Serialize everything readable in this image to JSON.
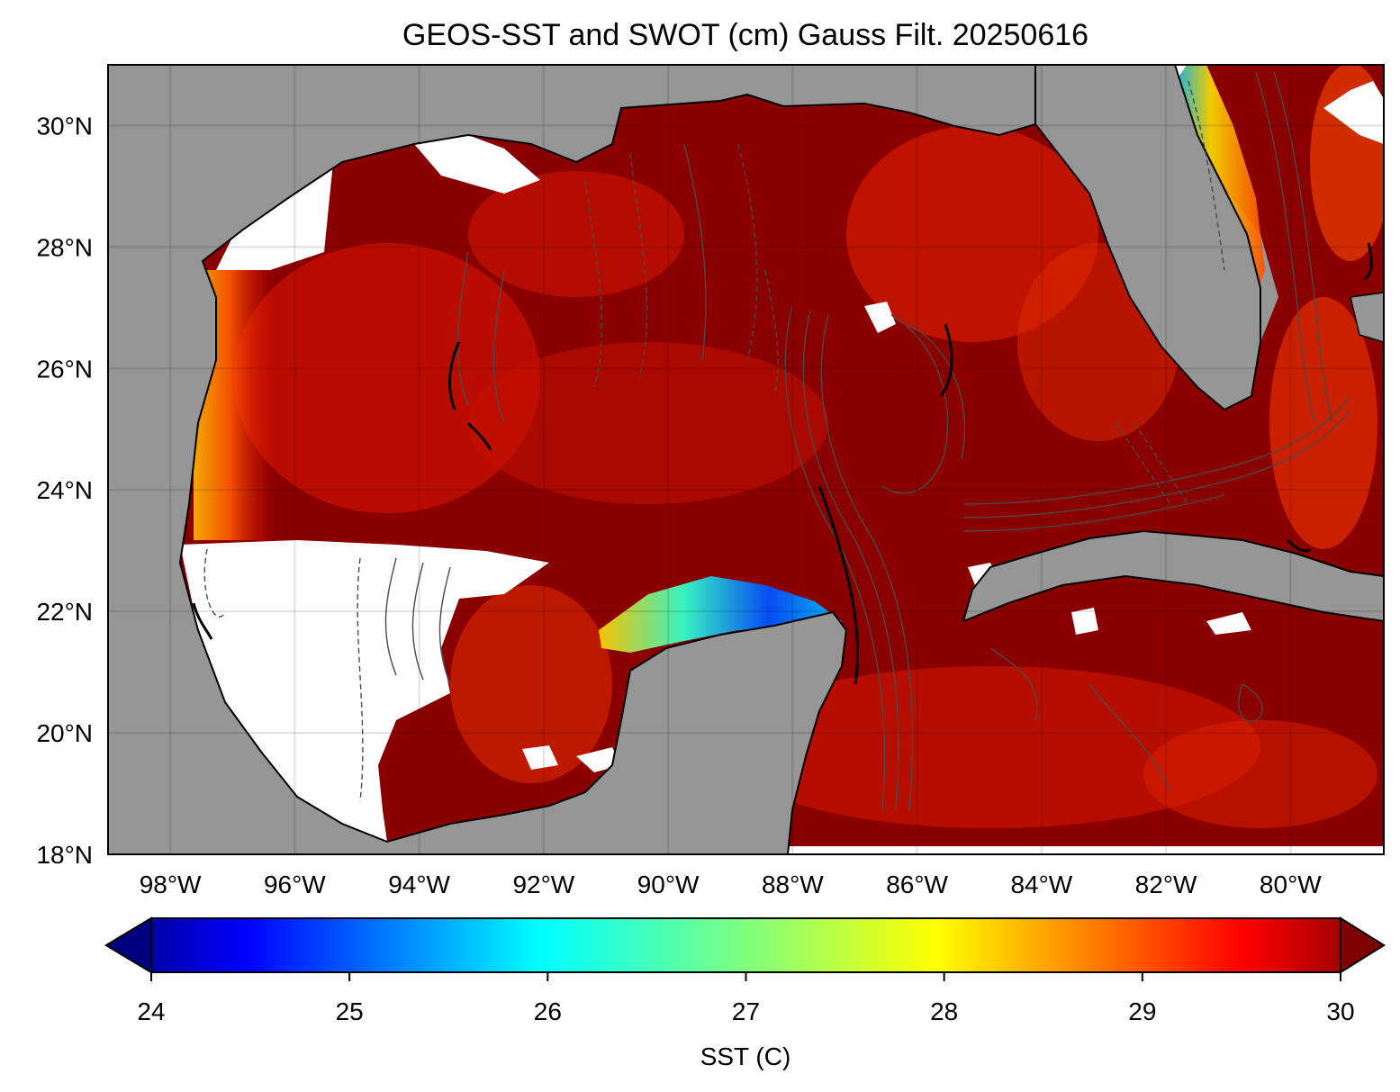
{
  "figure": {
    "title": "GEOS-SST  and SWOT (cm) Gauss Filt. 20250616"
  },
  "map": {
    "lon_range": [
      -99,
      -78.5
    ],
    "lat_range": [
      18,
      31
    ],
    "lon_ticks": [
      {
        "value": -98,
        "label": "98°W"
      },
      {
        "value": -96,
        "label": "96°W"
      },
      {
        "value": -94,
        "label": "94°W"
      },
      {
        "value": -92,
        "label": "92°W"
      },
      {
        "value": -90,
        "label": "90°W"
      },
      {
        "value": -88,
        "label": "88°W"
      },
      {
        "value": -86,
        "label": "86°W"
      },
      {
        "value": -84,
        "label": "84°W"
      },
      {
        "value": -82,
        "label": "82°W"
      },
      {
        "value": -80,
        "label": "80°W"
      }
    ],
    "lat_ticks": [
      {
        "value": 18,
        "label": "18°N"
      },
      {
        "value": 20,
        "label": "20°N"
      },
      {
        "value": 22,
        "label": "22°N"
      },
      {
        "value": 24,
        "label": "24°N"
      },
      {
        "value": 26,
        "label": "26°N"
      },
      {
        "value": 28,
        "label": "28°N"
      },
      {
        "value": 30,
        "label": "30°N"
      }
    ],
    "colors": {
      "land": "#969696",
      "no_data": "#ffffff",
      "contour": "#4a4a4a",
      "coast": "#000000"
    }
  },
  "colorbar": {
    "label": "SST (C)",
    "range": [
      24,
      30
    ],
    "extend": "both",
    "colormap": "jet",
    "ticks": [
      {
        "value": 24,
        "label": "24"
      },
      {
        "value": 25,
        "label": "25"
      },
      {
        "value": 26,
        "label": "26"
      },
      {
        "value": 27,
        "label": "27"
      },
      {
        "value": 28,
        "label": "28"
      },
      {
        "value": 29,
        "label": "29"
      },
      {
        "value": 30,
        "label": "30"
      }
    ]
  }
}
